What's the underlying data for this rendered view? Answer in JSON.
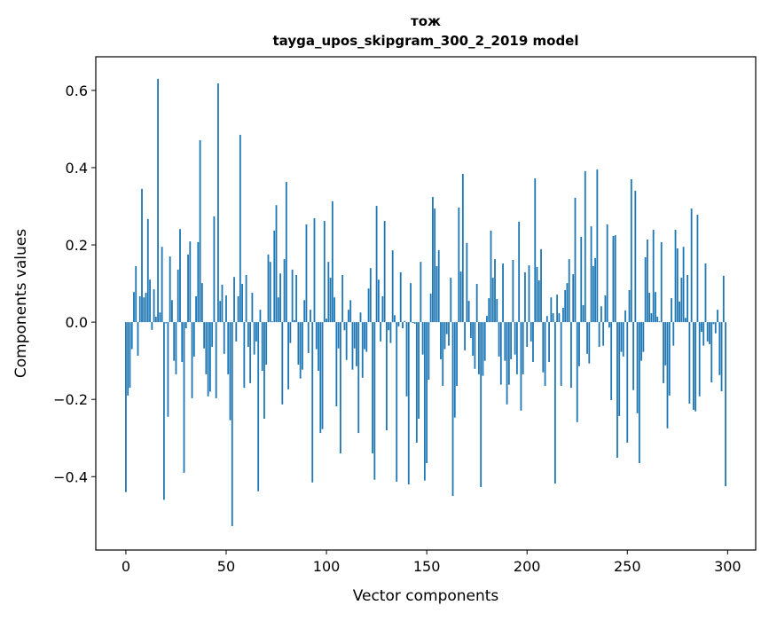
{
  "chart_data": {
    "type": "bar",
    "title": [
      "тож",
      "tayga_upos_skipgram_300_2_2019 model"
    ],
    "xlabel": "Vector components",
    "ylabel": "Components values",
    "xlim": [
      -15,
      314
    ],
    "ylim": [
      -0.59,
      0.687
    ],
    "xticks": [
      0,
      50,
      100,
      150,
      200,
      250,
      300
    ],
    "xtick_labels": [
      "0",
      "50",
      "100",
      "150",
      "200",
      "250",
      "300"
    ],
    "yticks": [
      -0.4,
      -0.2,
      0.0,
      0.2,
      0.4,
      0.6
    ],
    "ytick_labels": [
      "−0.4",
      "−0.2",
      "0.0",
      "0.2",
      "0.4",
      "0.6"
    ],
    "grid": false,
    "bar_color": "#1f77b4",
    "values": [
      -0.44,
      -0.19,
      -0.17,
      -0.07,
      0.078,
      0.145,
      -0.087,
      0.067,
      0.345,
      0.064,
      0.076,
      0.267,
      0.11,
      -0.02,
      0.085,
      0.014,
      0.63,
      0.025,
      0.195,
      -0.46,
      -0.003,
      -0.245,
      0.17,
      0.057,
      -0.1,
      -0.135,
      0.136,
      0.241,
      -0.103,
      -0.39,
      -0.016,
      0.175,
      0.209,
      -0.197,
      -0.089,
      0.067,
      0.207,
      0.471,
      0.101,
      -0.068,
      -0.135,
      -0.192,
      -0.18,
      -0.064,
      0.274,
      -0.197,
      0.618,
      0.055,
      0.097,
      -0.082,
      0.069,
      -0.135,
      -0.254,
      -0.528,
      0.117,
      -0.05,
      0.067,
      0.485,
      0.099,
      -0.17,
      0.122,
      -0.064,
      -0.158,
      0.076,
      -0.084,
      -0.05,
      -0.438,
      0.032,
      -0.126,
      -0.25,
      -0.11,
      0.175,
      0.156,
      0.002,
      0.237,
      0.303,
      0.064,
      0.126,
      -0.213,
      0.163,
      0.363,
      -0.174,
      -0.054,
      0.136,
      0.005,
      0.122,
      -0.11,
      -0.146,
      -0.123,
      0.057,
      0.253,
      -0.08,
      0.032,
      -0.415,
      0.269,
      -0.07,
      -0.126,
      -0.287,
      -0.277,
      0.262,
      0.009,
      0.156,
      0.115,
      0.313,
      0.064,
      -0.218,
      -0.068,
      -0.34,
      0.122,
      -0.021,
      -0.098,
      0.032,
      0.057,
      -0.123,
      -0.068,
      -0.114,
      -0.287,
      0.025,
      -0.144,
      -0.07,
      -0.077,
      0.087,
      0.14,
      -0.34,
      -0.408,
      0.301,
      0.11,
      -0.05,
      0.067,
      0.262,
      -0.28,
      -0.021,
      -0.054,
      0.186,
      0.018,
      -0.413,
      -0.011,
      0.129,
      -0.016,
      0.003,
      -0.192,
      -0.42,
      0.101,
      -0.002,
      -0.004,
      -0.312,
      -0.25,
      0.156,
      -0.084,
      -0.41,
      -0.365,
      -0.149,
      0.074,
      0.324,
      0.294,
      0.145,
      0.186,
      -0.096,
      -0.165,
      -0.07,
      -0.031,
      -0.061,
      0.115,
      -0.45,
      -0.247,
      -0.165,
      0.297,
      0.131,
      0.384,
      -0.073,
      0.205,
      0.055,
      -0.041,
      -0.087,
      -0.121,
      0.099,
      -0.135,
      -0.427,
      -0.139,
      -0.1,
      0.016,
      0.062,
      0.237,
      0.115,
      0.163,
      0.06,
      -0.089,
      -0.162,
      0.152,
      -0.1,
      -0.213,
      -0.162,
      -0.096,
      0.161,
      -0.084,
      -0.135,
      0.26,
      -0.229,
      -0.135,
      0.129,
      -0.064,
      0.147,
      -0.05,
      -0.103,
      0.372,
      0.143,
      0.108,
      0.189,
      -0.13,
      -0.165,
      0.016,
      -0.103,
      0.064,
      0.023,
      -0.418,
      0.071,
      0.023,
      -0.165,
      0.037,
      0.083,
      0.101,
      0.163,
      -0.17,
      0.124,
      0.322,
      -0.259,
      -0.114,
      0.221,
      0.044,
      0.391,
      -0.082,
      -0.107,
      0.248,
      0.145,
      0.166,
      0.395,
      -0.064,
      0.041,
      -0.061,
      0.069,
      0.253,
      -0.014,
      -0.202,
      0.223,
      0.225,
      -0.351,
      -0.243,
      -0.077,
      -0.089,
      0.03,
      -0.312,
      0.083,
      0.37,
      -0.176,
      0.34,
      -0.236,
      -0.365,
      -0.1,
      -0.077,
      0.168,
      0.214,
      0.076,
      0.023,
      0.239,
      0.078,
      0.014,
      0.002,
      0.207,
      -0.158,
      -0.112,
      -0.275,
      -0.19,
      0.062,
      -0.061,
      0.239,
      0.191,
      0.053,
      0.115,
      0.195,
      0.011,
      0.122,
      -0.211,
      0.294,
      -0.227,
      -0.231,
      0.278,
      -0.192,
      -0.025,
      -0.061,
      0.152,
      -0.05,
      -0.057,
      -0.156,
      -0.005,
      -0.029,
      0.032,
      -0.137,
      -0.179,
      0.12,
      -0.425
    ]
  }
}
